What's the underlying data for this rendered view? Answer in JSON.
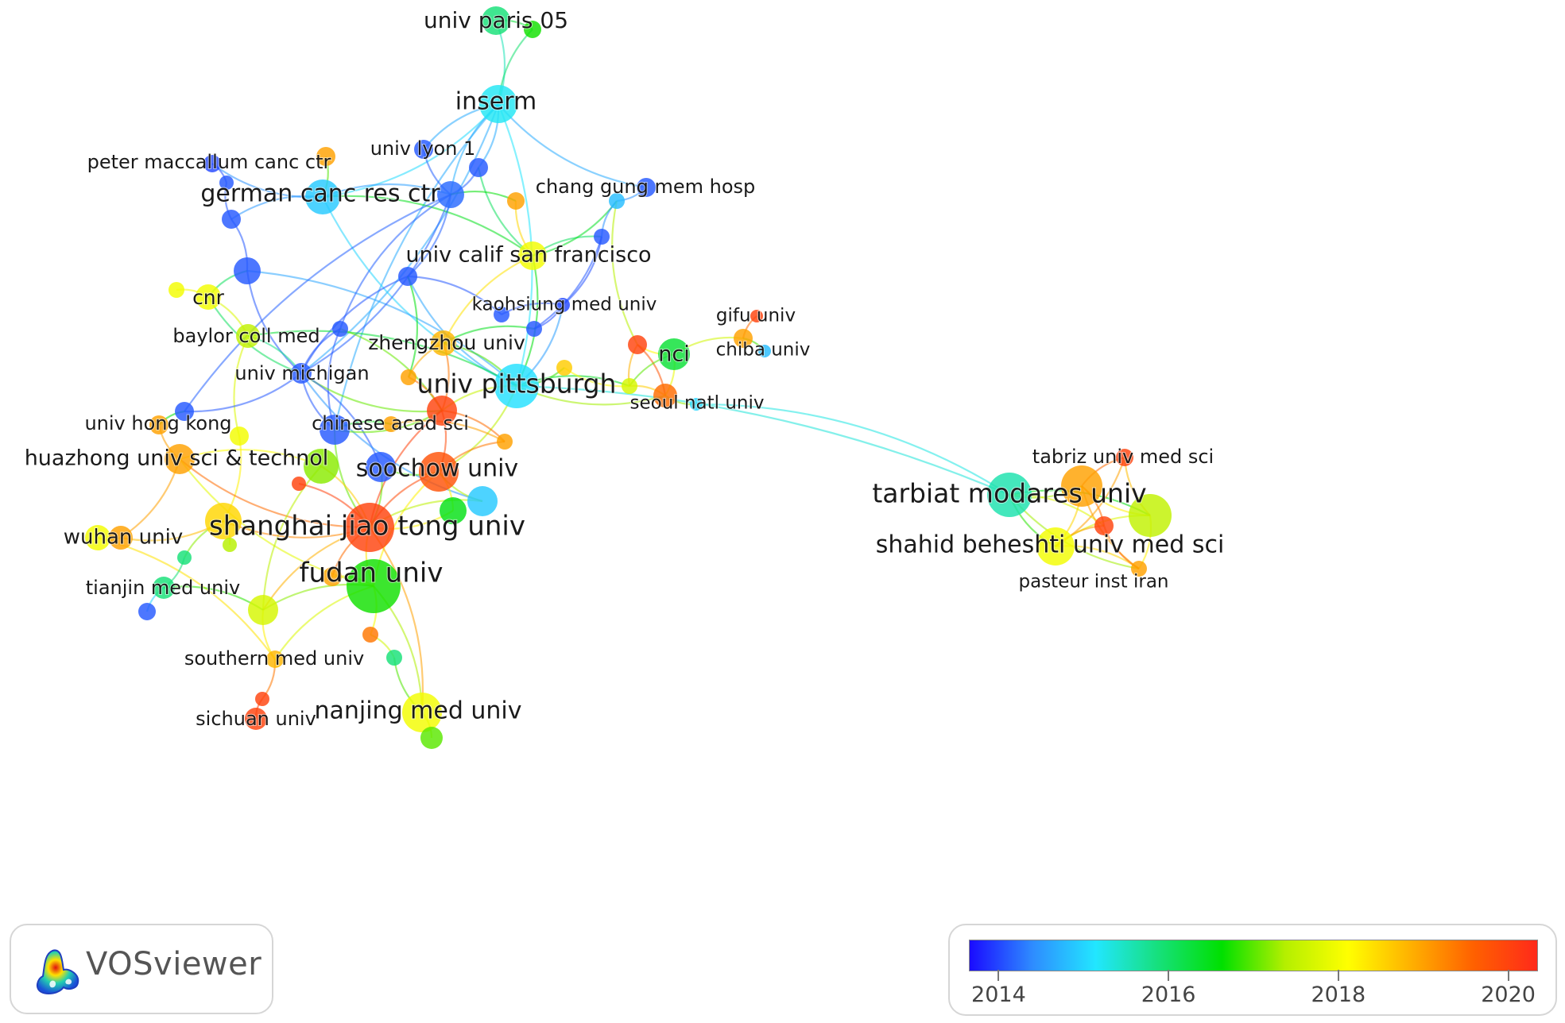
{
  "app": {
    "name": "VOSviewer"
  },
  "legend": {
    "colors": [
      "#1a0bff",
      "#2e8cff",
      "#22e6ff",
      "#16e07a",
      "#00e000",
      "#b4ef00",
      "#ffff00",
      "#ffb000",
      "#ff6000",
      "#ff2a1a"
    ],
    "ticks": [
      "2014",
      "2016",
      "2018",
      "2020"
    ],
    "min_year": 2013.65,
    "max_year": 2020.35
  },
  "network": {
    "nodes": [
      {
        "id": "univ_paris_05",
        "label": "univ paris 05",
        "year": 2015.9
      },
      {
        "id": "paris_green",
        "label": "",
        "year": 2016.7
      },
      {
        "id": "inserm",
        "label": "inserm",
        "year": 2015.2
      },
      {
        "id": "univ_lyon_1",
        "label": "univ lyon 1",
        "year": 2014.1
      },
      {
        "id": "lyon_b",
        "label": "",
        "year": 2014.1
      },
      {
        "id": "german_canc_res_ctr",
        "label": "german canc res ctr",
        "year": 2014.9
      },
      {
        "id": "german_b",
        "label": "",
        "year": 2014.2
      },
      {
        "id": "peter_maccallum_canc_ctr",
        "label": "peter maccallum canc ctr",
        "year": 2014.0
      },
      {
        "id": "pm_orange",
        "label": "",
        "year": 2019.0
      },
      {
        "id": "pm_b",
        "label": "",
        "year": 2014.1
      },
      {
        "id": "pm_c",
        "label": "",
        "year": 2014.1
      },
      {
        "id": "left_purple",
        "label": "",
        "year": 2014.1
      },
      {
        "id": "ucsf_orange",
        "label": "",
        "year": 2019.0
      },
      {
        "id": "chang_gung_mem_hosp",
        "label": "chang gung mem hosp",
        "year": 2014.1
      },
      {
        "id": "chang_b",
        "label": "",
        "year": 2014.8
      },
      {
        "id": "chang_c",
        "label": "",
        "year": 2014.1
      },
      {
        "id": "univ_calif_san_francisco",
        "label": "univ calif san francisco",
        "year": 2018.0
      },
      {
        "id": "mid_purple",
        "label": "",
        "year": 2014.1
      },
      {
        "id": "cnr",
        "label": "cnr",
        "year": 2018.0
      },
      {
        "id": "cnr_yellow",
        "label": "",
        "year": 2018.0
      },
      {
        "id": "kaohsiung_med_univ",
        "label": "kaohsiung med univ",
        "year": 2014.0
      },
      {
        "id": "kh_b",
        "label": "",
        "year": 2014.1
      },
      {
        "id": "kh_c",
        "label": "",
        "year": 2014.1
      },
      {
        "id": "baylor_coll_med",
        "label": "baylor coll med",
        "year": 2017.5
      },
      {
        "id": "baylor_purple",
        "label": "",
        "year": 2014.1
      },
      {
        "id": "zhengzhou_univ",
        "label": "zhengzhou univ",
        "year": 2018.8
      },
      {
        "id": "red_mid",
        "label": "",
        "year": 2020.0
      },
      {
        "id": "nci",
        "label": "nci",
        "year": 2016.3
      },
      {
        "id": "gifu_univ",
        "label": "gifu univ",
        "year": 2020.0
      },
      {
        "id": "gifu_orange",
        "label": "",
        "year": 2019.0
      },
      {
        "id": "chiba_univ",
        "label": "chiba univ",
        "year": 2014.8
      },
      {
        "id": "univ_michigan",
        "label": "univ michigan",
        "year": 2014.1
      },
      {
        "id": "zz_orange_a",
        "label": "",
        "year": 2019.0
      },
      {
        "id": "zz_yellow",
        "label": "",
        "year": 2018.6
      },
      {
        "id": "univ_pittsburgh",
        "label": "univ pittsburgh",
        "year": 2015.1
      },
      {
        "id": "green_yellow_mid",
        "label": "",
        "year": 2017.7
      },
      {
        "id": "seoul_orange",
        "label": "",
        "year": 2019.5
      },
      {
        "id": "seoul_natl_univ",
        "label": "seoul natl univ",
        "year": 2015.0
      },
      {
        "id": "univ_hong_kong",
        "label": "univ hong kong",
        "year": 2019.0
      },
      {
        "id": "hk_purple",
        "label": "",
        "year": 2014.1
      },
      {
        "id": "hk_yellow",
        "label": "",
        "year": 2018.0
      },
      {
        "id": "chinese_acad_sci",
        "label": "chinese acad sci",
        "year": 2014.1
      },
      {
        "id": "cas_red",
        "label": "",
        "year": 2020.0
      },
      {
        "id": "cas_orange",
        "label": "",
        "year": 2019.0
      },
      {
        "id": "cas_orange_b",
        "label": "",
        "year": 2019.0
      },
      {
        "id": "huazhong_univ_sci_technol",
        "label": "huazhong univ sci & technol",
        "year": 2019.0
      },
      {
        "id": "hz_green",
        "label": "",
        "year": 2017.2
      },
      {
        "id": "hz_red_small",
        "label": "",
        "year": 2020.0
      },
      {
        "id": "soochow_univ",
        "label": "soochow univ",
        "year": 2019.8
      },
      {
        "id": "soochow_purple",
        "label": "",
        "year": 2014.1
      },
      {
        "id": "soochow_blue",
        "label": "",
        "year": 2014.9
      },
      {
        "id": "soochow_green",
        "label": "",
        "year": 2016.5
      },
      {
        "id": "shanghai_jiao_tong_univ",
        "label": "shanghai jiao tong univ",
        "year": 2020.0
      },
      {
        "id": "sjt_yellow",
        "label": "",
        "year": 2018.5
      },
      {
        "id": "sjt_green_small",
        "label": "",
        "year": 2017.4
      },
      {
        "id": "wuhan_univ",
        "label": "wuhan univ",
        "year": 2018.0
      },
      {
        "id": "wuhan_orange",
        "label": "",
        "year": 2019.0
      },
      {
        "id": "fudan_univ",
        "label": "fudan univ",
        "year": 2016.7
      },
      {
        "id": "fudan_orange",
        "label": "",
        "year": 2019.0
      },
      {
        "id": "tj_cyan_small",
        "label": "",
        "year": 2015.9
      },
      {
        "id": "tianjin_med_univ",
        "label": "tianjin med univ",
        "year": 2015.9
      },
      {
        "id": "tj_purple",
        "label": "",
        "year": 2014.1
      },
      {
        "id": "yg_mid",
        "label": "",
        "year": 2017.7
      },
      {
        "id": "southern_med_univ",
        "label": "southern med univ",
        "year": 2018.8
      },
      {
        "id": "fd_orange_b",
        "label": "",
        "year": 2019.4
      },
      {
        "id": "fd_cyan",
        "label": "",
        "year": 2015.9
      },
      {
        "id": "sichuan_red_small",
        "label": "",
        "year": 2020.0
      },
      {
        "id": "sichuan_univ",
        "label": "sichuan univ",
        "year": 2020.0
      },
      {
        "id": "nanjing_med_univ",
        "label": "nanjing med univ",
        "year": 2018.0
      },
      {
        "id": "nanjing_green",
        "label": "",
        "year": 2017.0
      },
      {
        "id": "tabriz_univ_med_sci",
        "label": "tabriz univ med sci",
        "year": 2020.0
      },
      {
        "id": "tarbiat_modares_univ",
        "label": "tarbiat modares univ",
        "year": 2015.6
      },
      {
        "id": "tm_orange",
        "label": "",
        "year": 2019.0
      },
      {
        "id": "tm_green",
        "label": "",
        "year": 2017.5
      },
      {
        "id": "tm_red_small",
        "label": "",
        "year": 2020.0
      },
      {
        "id": "shahid_beheshti_univ_med_sci",
        "label": "shahid beheshti univ med sci",
        "year": 2018.0
      },
      {
        "id": "pasteur_inst_iran",
        "label": "pasteur inst iran",
        "year": 2019.0
      }
    ],
    "edges": [
      [
        "univ_paris_05",
        "inserm"
      ],
      [
        "paris_green",
        "inserm"
      ],
      [
        "univ_paris_05",
        "paris_green"
      ],
      [
        "inserm",
        "univ_lyon_1"
      ],
      [
        "inserm",
        "lyon_b"
      ],
      [
        "inserm",
        "german_b"
      ],
      [
        "inserm",
        "german_canc_res_ctr"
      ],
      [
        "inserm",
        "chang_gung_mem_hosp"
      ],
      [
        "inserm",
        "univ_michigan"
      ],
      [
        "inserm",
        "chinese_acad_sci"
      ],
      [
        "inserm",
        "univ_pittsburgh"
      ],
      [
        "univ_lyon_1",
        "german_b"
      ],
      [
        "lyon_b",
        "german_b"
      ],
      [
        "lyon_b",
        "univ_calif_san_francisco"
      ],
      [
        "german_canc_res_ctr",
        "peter_maccallum_canc_ctr"
      ],
      [
        "german_canc_res_ctr",
        "pm_orange"
      ],
      [
        "german_canc_res_ctr",
        "german_b"
      ],
      [
        "german_canc_res_ctr",
        "univ_pittsburgh"
      ],
      [
        "german_canc_res_ctr",
        "univ_calif_san_francisco"
      ],
      [
        "german_canc_res_ctr",
        "pm_c"
      ],
      [
        "peter_maccallum_canc_ctr",
        "pm_b"
      ],
      [
        "pm_b",
        "pm_c"
      ],
      [
        "pm_c",
        "left_purple"
      ],
      [
        "left_purple",
        "univ_michigan"
      ],
      [
        "left_purple",
        "univ_pittsburgh"
      ],
      [
        "left_purple",
        "cnr"
      ],
      [
        "german_b",
        "mid_purple"
      ],
      [
        "german_b",
        "baylor_purple"
      ],
      [
        "german_b",
        "ucsf_orange"
      ],
      [
        "german_b",
        "hk_purple"
      ],
      [
        "german_b",
        "univ_michigan"
      ],
      [
        "ucsf_orange",
        "univ_calif_san_francisco"
      ],
      [
        "univ_calif_san_francisco",
        "chang_c"
      ],
      [
        "univ_calif_san_francisco",
        "chang_b"
      ],
      [
        "univ_calif_san_francisco",
        "univ_pittsburgh"
      ],
      [
        "univ_calif_san_francisco",
        "zhengzhou_univ"
      ],
      [
        "chang_gung_mem_hosp",
        "chang_b"
      ],
      [
        "chang_b",
        "chang_c"
      ],
      [
        "chang_c",
        "kaohsiung_med_univ"
      ],
      [
        "chang_b",
        "red_mid"
      ],
      [
        "chang_c",
        "kh_c"
      ],
      [
        "mid_purple",
        "univ_pittsburgh"
      ],
      [
        "mid_purple",
        "kh_b"
      ],
      [
        "mid_purple",
        "univ_michigan"
      ],
      [
        "mid_purple",
        "zz_orange_a"
      ],
      [
        "kaohsiung_med_univ",
        "kh_b"
      ],
      [
        "kaohsiung_med_univ",
        "kh_c"
      ],
      [
        "kh_c",
        "zhengzhou_univ"
      ],
      [
        "kaohsiung_med_univ",
        "univ_pittsburgh"
      ],
      [
        "cnr",
        "cnr_yellow"
      ],
      [
        "cnr",
        "baylor_coll_med"
      ],
      [
        "cnr",
        "univ_michigan"
      ],
      [
        "baylor_coll_med",
        "univ_michigan"
      ],
      [
        "baylor_coll_med",
        "hk_yellow"
      ],
      [
        "baylor_coll_med",
        "univ_pittsburgh"
      ],
      [
        "baylor_purple",
        "chinese_acad_sci"
      ],
      [
        "baylor_purple",
        "cas_red"
      ],
      [
        "baylor_purple",
        "univ_michigan"
      ],
      [
        "zhengzhou_univ",
        "cas_red"
      ],
      [
        "zhengzhou_univ",
        "zz_orange_a"
      ],
      [
        "zhengzhou_univ",
        "univ_pittsburgh"
      ],
      [
        "red_mid",
        "nci"
      ],
      [
        "red_mid",
        "seoul_orange"
      ],
      [
        "red_mid",
        "green_yellow_mid"
      ],
      [
        "nci",
        "gifu_orange"
      ],
      [
        "gifu_univ",
        "gifu_orange"
      ],
      [
        "gifu_orange",
        "chiba_univ"
      ],
      [
        "nci",
        "green_yellow_mid"
      ],
      [
        "nci",
        "seoul_orange"
      ],
      [
        "univ_pittsburgh",
        "zz_yellow"
      ],
      [
        "univ_pittsburgh",
        "green_yellow_mid"
      ],
      [
        "univ_pittsburgh",
        "cas_red"
      ],
      [
        "univ_pittsburgh",
        "soochow_univ"
      ],
      [
        "univ_pittsburgh",
        "seoul_orange"
      ],
      [
        "univ_pittsburgh",
        "tarbiat_modares_univ"
      ],
      [
        "zz_yellow",
        "green_yellow_mid"
      ],
      [
        "green_yellow_mid",
        "seoul_orange"
      ],
      [
        "seoul_orange",
        "seoul_natl_univ"
      ],
      [
        "seoul_natl_univ",
        "tarbiat_modares_univ"
      ],
      [
        "univ_michigan",
        "chinese_acad_sci"
      ],
      [
        "univ_michigan",
        "hk_purple"
      ],
      [
        "univ_michigan",
        "cas_red"
      ],
      [
        "univ_michigan",
        "soochow_purple"
      ],
      [
        "univ_michigan",
        "soochow_blue"
      ],
      [
        "univ_hong_kong",
        "hk_purple"
      ],
      [
        "univ_hong_kong",
        "huazhong_univ_sci_technol"
      ],
      [
        "hk_yellow",
        "sjt_yellow"
      ],
      [
        "chinese_acad_sci",
        "cas_red"
      ],
      [
        "chinese_acad_sci",
        "cas_orange"
      ],
      [
        "chinese_acad_sci",
        "shanghai_jiao_tong_univ"
      ],
      [
        "cas_red",
        "soochow_univ"
      ],
      [
        "cas_red",
        "shanghai_jiao_tong_univ"
      ],
      [
        "cas_red",
        "cas_orange_b"
      ],
      [
        "cas_red",
        "zz_orange_a"
      ],
      [
        "cas_orange",
        "cas_orange_b"
      ],
      [
        "cas_orange_b",
        "soochow_univ"
      ],
      [
        "huazhong_univ_sci_technol",
        "hz_green"
      ],
      [
        "huazhong_univ_sci_technol",
        "shanghai_jiao_tong_univ"
      ],
      [
        "huazhong_univ_sci_technol",
        "wuhan_orange"
      ],
      [
        "huazhong_univ_sci_technol",
        "fudan_univ"
      ],
      [
        "hz_green",
        "shanghai_jiao_tong_univ"
      ],
      [
        "hz_green",
        "yg_mid"
      ],
      [
        "hz_red_small",
        "shanghai_jiao_tong_univ"
      ],
      [
        "soochow_univ",
        "shanghai_jiao_tong_univ"
      ],
      [
        "soochow_univ",
        "soochow_purple"
      ],
      [
        "soochow_univ",
        "fudan_univ"
      ],
      [
        "soochow_univ",
        "soochow_green"
      ],
      [
        "soochow_univ",
        "soochow_blue"
      ],
      [
        "soochow_purple",
        "shanghai_jiao_tong_univ"
      ],
      [
        "soochow_blue",
        "shanghai_jiao_tong_univ"
      ],
      [
        "soochow_green",
        "shanghai_jiao_tong_univ"
      ],
      [
        "shanghai_jiao_tong_univ",
        "fudan_univ"
      ],
      [
        "shanghai_jiao_tong_univ",
        "sjt_yellow"
      ],
      [
        "shanghai_jiao_tong_univ",
        "fudan_orange"
      ],
      [
        "shanghai_jiao_tong_univ",
        "nanjing_med_univ"
      ],
      [
        "shanghai_jiao_tong_univ",
        "yg_mid"
      ],
      [
        "sjt_yellow",
        "sjt_green_small"
      ],
      [
        "sjt_yellow",
        "tj_cyan_small"
      ],
      [
        "sjt_yellow",
        "wuhan_orange"
      ],
      [
        "wuhan_univ",
        "wuhan_orange"
      ],
      [
        "wuhan_univ",
        "southern_med_univ"
      ],
      [
        "fudan_univ",
        "fudan_orange"
      ],
      [
        "fudan_univ",
        "fd_orange_b"
      ],
      [
        "fudan_univ",
        "yg_mid"
      ],
      [
        "fudan_univ",
        "nanjing_med_univ"
      ],
      [
        "fudan_univ",
        "southern_med_univ"
      ],
      [
        "tj_cyan_small",
        "tianjin_med_univ"
      ],
      [
        "tianjin_med_univ",
        "tj_purple"
      ],
      [
        "tianjin_med_univ",
        "yg_mid"
      ],
      [
        "yg_mid",
        "southern_med_univ"
      ],
      [
        "southern_med_univ",
        "sichuan_red_small"
      ],
      [
        "sichuan_red_small",
        "sichuan_univ"
      ],
      [
        "fd_orange_b",
        "fd_cyan"
      ],
      [
        "fd_cyan",
        "nanjing_med_univ"
      ],
      [
        "nanjing_med_univ",
        "nanjing_green"
      ],
      [
        "tarbiat_modares_univ",
        "tm_orange"
      ],
      [
        "tarbiat_modares_univ",
        "tm_green"
      ],
      [
        "tarbiat_modares_univ",
        "shahid_beheshti_univ_med_sci"
      ],
      [
        "tarbiat_modares_univ",
        "tm_red_small"
      ],
      [
        "tarbiat_modares_univ",
        "pasteur_inst_iran"
      ],
      [
        "tm_orange",
        "tabriz_univ_med_sci"
      ],
      [
        "tm_orange",
        "tm_green"
      ],
      [
        "tm_orange",
        "shahid_beheshti_univ_med_sci"
      ],
      [
        "tm_orange",
        "pasteur_inst_iran"
      ],
      [
        "tm_orange",
        "tm_red_small"
      ],
      [
        "tabriz_univ_med_sci",
        "tm_green"
      ],
      [
        "tabriz_univ_med_sci",
        "shahid_beheshti_univ_med_sci"
      ],
      [
        "tm_green",
        "shahid_beheshti_univ_med_sci"
      ],
      [
        "tm_green",
        "pasteur_inst_iran"
      ],
      [
        "tm_red_small",
        "shahid_beheshti_univ_med_sci"
      ],
      [
        "shahid_beheshti_univ_med_sci",
        "pasteur_inst_iran"
      ],
      [
        "tm_red_small",
        "pasteur_inst_iran"
      ]
    ]
  }
}
